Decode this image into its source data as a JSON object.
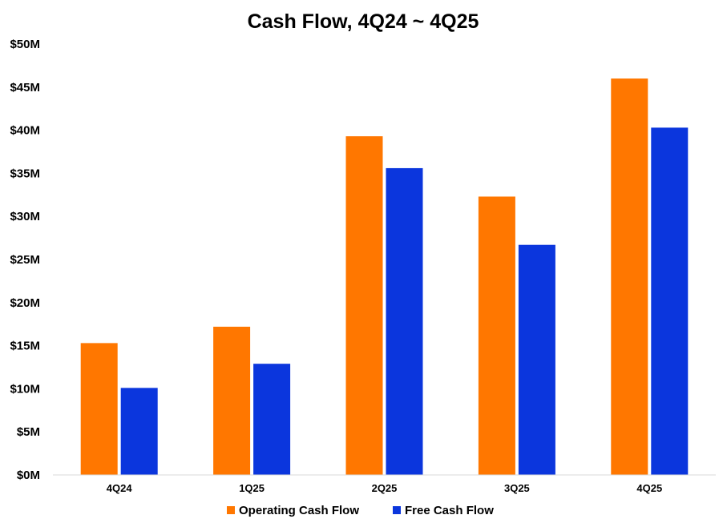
{
  "chart_data": {
    "type": "bar",
    "title": "Cash Flow, 4Q24 ~ 4Q25",
    "xlabel": "",
    "ylabel": "",
    "categories": [
      "4Q24",
      "1Q25",
      "2Q25",
      "3Q25",
      "4Q25"
    ],
    "series": [
      {
        "name": "Operating Cash Flow",
        "color": "#FF7700",
        "values": [
          15.3,
          17.2,
          39.3,
          32.3,
          46.0
        ]
      },
      {
        "name": "Free Cash Flow",
        "color": "#0B36DD",
        "values": [
          10.1,
          12.9,
          35.6,
          26.7,
          40.3
        ]
      }
    ],
    "ylim": [
      0,
      50
    ],
    "yticks": [
      0,
      5,
      10,
      15,
      20,
      25,
      30,
      35,
      40,
      45,
      50
    ],
    "ytick_labels": [
      "$0M",
      "$5M",
      "$10M",
      "$15M",
      "$20M",
      "$25M",
      "$30M",
      "$35M",
      "$40M",
      "$45M",
      "$50M"
    ],
    "grid": false,
    "legend_position": "bottom-center"
  }
}
